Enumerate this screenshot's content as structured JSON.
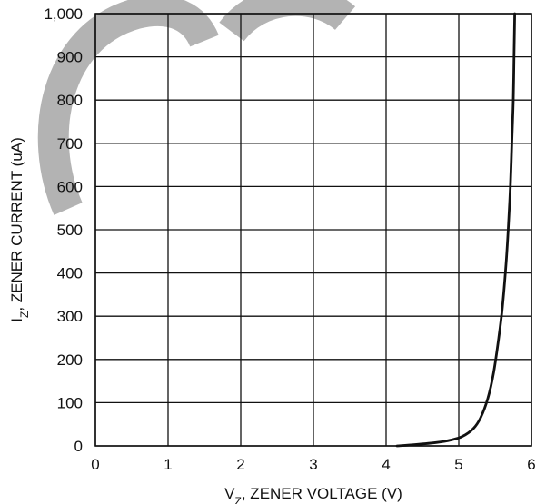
{
  "chart_data": {
    "type": "line",
    "xlabel": {
      "main": "V",
      "sub": "Z",
      "rest": ", ZENER VOLTAGE (V)"
    },
    "ylabel": {
      "main": "I",
      "sub": "Z",
      "rest": ", ZENER CURRENT (uA)"
    },
    "xlim": [
      0,
      6
    ],
    "ylim": [
      0,
      1000
    ],
    "x_ticks": [
      0,
      1,
      2,
      3,
      4,
      5,
      6
    ],
    "y_ticks": [
      0,
      100,
      200,
      300,
      400,
      500,
      600,
      700,
      800,
      900,
      1000
    ],
    "x_tick_labels": [
      "0",
      "1",
      "2",
      "3",
      "4",
      "5",
      "6"
    ],
    "y_tick_labels": [
      "0",
      "100",
      "200",
      "300",
      "400",
      "500",
      "600",
      "700",
      "800",
      "900",
      "1,000"
    ],
    "grid": true,
    "series": [
      {
        "x": [
          4.15,
          4.4,
          4.7,
          4.9,
          5.05,
          5.2,
          5.3,
          5.4,
          5.48,
          5.55,
          5.6,
          5.65,
          5.68,
          5.71,
          5.73,
          5.75,
          5.76,
          5.77
        ],
        "y": [
          0,
          3,
          8,
          14,
          22,
          40,
          65,
          110,
          170,
          250,
          320,
          420,
          500,
          600,
          700,
          800,
          900,
          1000
        ]
      }
    ]
  }
}
